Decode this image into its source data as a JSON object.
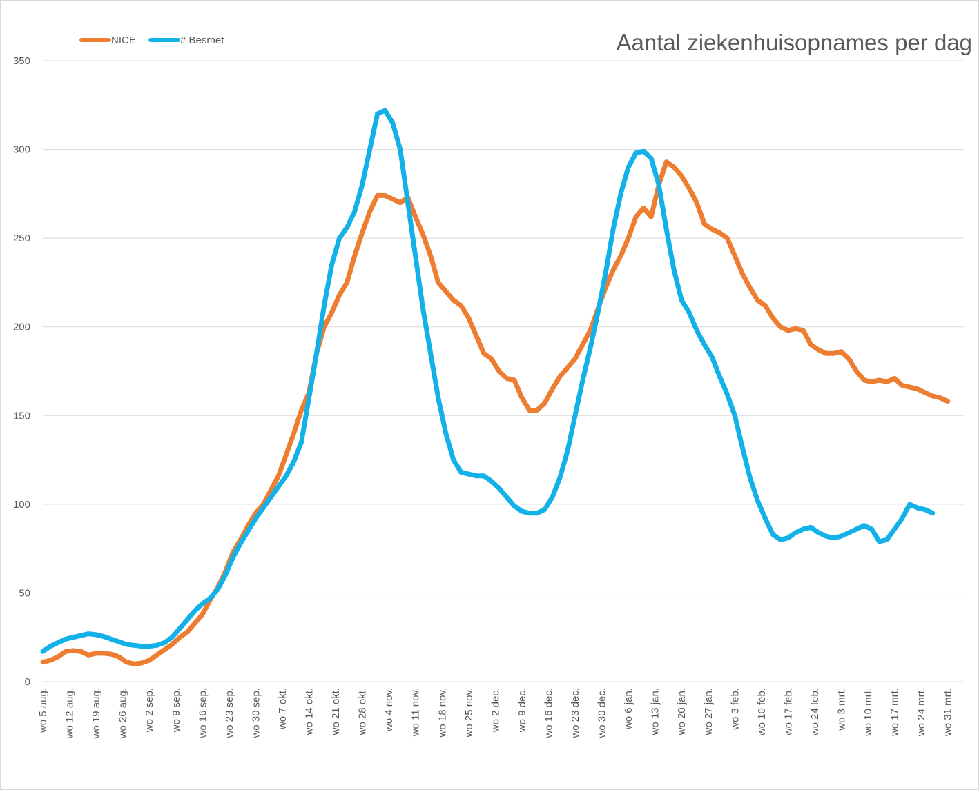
{
  "chart_data": {
    "type": "line",
    "title": "Aantal ziekenhuisopnames per dag",
    "xlabel": "",
    "ylabel": "",
    "ylim": [
      0,
      350
    ],
    "yticks": [
      0,
      50,
      100,
      150,
      200,
      250,
      300,
      350
    ],
    "grid": true,
    "legend_position": "top-left",
    "categories": [
      "wo 5 aug.",
      "wo 12 aug.",
      "wo 19 aug.",
      "wo 26 aug.",
      "wo 2 sep.",
      "wo 9 sep.",
      "wo 16 sep.",
      "wo 23 sep.",
      "wo 30 sep.",
      "wo 7 okt.",
      "wo 14 okt.",
      "wo 21 okt.",
      "wo 28 okt.",
      "wo 4 nov.",
      "wo 11 nov.",
      "wo 18 nov.",
      "wo 25 nov.",
      "wo 2 dec.",
      "wo 9 dec.",
      "wo 16 dec.",
      "wo 23 dec.",
      "wo 30 dec.",
      "wo 6 jan.",
      "wo 13 jan.",
      "wo 20 jan.",
      "wo 27 jan.",
      "wo 3 feb.",
      "wo 10 feb.",
      "wo 17 feb.",
      "wo 24 feb.",
      "wo 3 mrt.",
      "wo 10 mrt.",
      "wo 17 mrt.",
      "wo 24 mrt.",
      "wo 31 mrt."
    ],
    "series": [
      {
        "name": "NICE",
        "color": "#ed7d31",
        "points": [
          [
            0,
            11
          ],
          [
            2,
            12
          ],
          [
            4,
            14
          ],
          [
            6,
            17
          ],
          [
            8,
            17.5
          ],
          [
            10,
            17
          ],
          [
            12,
            15
          ],
          [
            14,
            16
          ],
          [
            16,
            16
          ],
          [
            18,
            15.5
          ],
          [
            20,
            14
          ],
          [
            22,
            11
          ],
          [
            24,
            10
          ],
          [
            26,
            10.5
          ],
          [
            28,
            12
          ],
          [
            30,
            15
          ],
          [
            32,
            18
          ],
          [
            34,
            21
          ],
          [
            36,
            25
          ],
          [
            38,
            28
          ],
          [
            40,
            33
          ],
          [
            42,
            38
          ],
          [
            44,
            46
          ],
          [
            46,
            53
          ],
          [
            48,
            62
          ],
          [
            50,
            73
          ],
          [
            52,
            80
          ],
          [
            54,
            88
          ],
          [
            56,
            95
          ],
          [
            58,
            100
          ],
          [
            60,
            108
          ],
          [
            62,
            116
          ],
          [
            64,
            128
          ],
          [
            66,
            140
          ],
          [
            68,
            153
          ],
          [
            70,
            163
          ],
          [
            72,
            185
          ],
          [
            74,
            200
          ],
          [
            76,
            208
          ],
          [
            78,
            218
          ],
          [
            80,
            225
          ],
          [
            82,
            240
          ],
          [
            84,
            253
          ],
          [
            86,
            265
          ],
          [
            88,
            274
          ],
          [
            90,
            274
          ],
          [
            92,
            272
          ],
          [
            94,
            270
          ],
          [
            96,
            273
          ],
          [
            98,
            262
          ],
          [
            100,
            252
          ],
          [
            102,
            240
          ],
          [
            104,
            225
          ],
          [
            106,
            220
          ],
          [
            108,
            215
          ],
          [
            110,
            212
          ],
          [
            112,
            205
          ],
          [
            114,
            195
          ],
          [
            116,
            185
          ],
          [
            118,
            182
          ],
          [
            120,
            175
          ],
          [
            122,
            171
          ],
          [
            124,
            170
          ],
          [
            126,
            160
          ],
          [
            128,
            153
          ],
          [
            130,
            153
          ],
          [
            132,
            157
          ],
          [
            134,
            165
          ],
          [
            136,
            172
          ],
          [
            138,
            177
          ],
          [
            140,
            182
          ],
          [
            142,
            190
          ],
          [
            144,
            198
          ],
          [
            146,
            210
          ],
          [
            148,
            222
          ],
          [
            150,
            232
          ],
          [
            152,
            240
          ],
          [
            154,
            250
          ],
          [
            156,
            262
          ],
          [
            158,
            267
          ],
          [
            160,
            262
          ],
          [
            162,
            280
          ],
          [
            164,
            293
          ],
          [
            166,
            290
          ],
          [
            168,
            285
          ],
          [
            170,
            278
          ],
          [
            172,
            270
          ],
          [
            174,
            258
          ],
          [
            176,
            255
          ],
          [
            178,
            253
          ],
          [
            180,
            250
          ],
          [
            182,
            240
          ],
          [
            184,
            230
          ],
          [
            186,
            222
          ],
          [
            188,
            215
          ],
          [
            190,
            212
          ],
          [
            192,
            205
          ],
          [
            194,
            200
          ],
          [
            196,
            198
          ],
          [
            198,
            199
          ],
          [
            200,
            198
          ],
          [
            202,
            190
          ],
          [
            204,
            187
          ],
          [
            206,
            185
          ],
          [
            208,
            185
          ],
          [
            210,
            186
          ],
          [
            212,
            182
          ],
          [
            214,
            175
          ],
          [
            216,
            170
          ],
          [
            218,
            169
          ],
          [
            220,
            170
          ],
          [
            222,
            169
          ],
          [
            224,
            171
          ],
          [
            226,
            167
          ],
          [
            228,
            166
          ],
          [
            230,
            165
          ],
          [
            232,
            163
          ],
          [
            234,
            161
          ],
          [
            236,
            160
          ],
          [
            238,
            158
          ]
        ]
      },
      {
        "name": "# Besmet",
        "color": "#12b1e8",
        "points": [
          [
            0,
            17
          ],
          [
            2,
            20
          ],
          [
            4,
            22
          ],
          [
            6,
            24
          ],
          [
            8,
            25
          ],
          [
            10,
            26
          ],
          [
            12,
            27
          ],
          [
            14,
            26.5
          ],
          [
            16,
            25.5
          ],
          [
            18,
            24
          ],
          [
            20,
            22.5
          ],
          [
            22,
            21
          ],
          [
            24,
            20.5
          ],
          [
            26,
            20
          ],
          [
            28,
            20
          ],
          [
            30,
            20.5
          ],
          [
            32,
            22
          ],
          [
            34,
            25
          ],
          [
            36,
            30
          ],
          [
            38,
            35
          ],
          [
            40,
            40
          ],
          [
            42,
            44
          ],
          [
            44,
            47
          ],
          [
            46,
            52
          ],
          [
            48,
            60
          ],
          [
            50,
            70
          ],
          [
            52,
            78
          ],
          [
            54,
            85
          ],
          [
            56,
            92
          ],
          [
            58,
            98
          ],
          [
            60,
            104
          ],
          [
            62,
            110
          ],
          [
            64,
            116
          ],
          [
            66,
            124
          ],
          [
            68,
            135
          ],
          [
            70,
            160
          ],
          [
            72,
            185
          ],
          [
            74,
            212
          ],
          [
            76,
            235
          ],
          [
            78,
            250
          ],
          [
            80,
            256
          ],
          [
            82,
            265
          ],
          [
            84,
            280
          ],
          [
            86,
            300
          ],
          [
            88,
            320
          ],
          [
            90,
            322
          ],
          [
            92,
            315
          ],
          [
            94,
            300
          ],
          [
            96,
            270
          ],
          [
            98,
            240
          ],
          [
            100,
            210
          ],
          [
            102,
            185
          ],
          [
            104,
            160
          ],
          [
            106,
            140
          ],
          [
            108,
            125
          ],
          [
            110,
            118
          ],
          [
            112,
            117
          ],
          [
            114,
            116
          ],
          [
            116,
            116
          ],
          [
            118,
            113
          ],
          [
            120,
            109
          ],
          [
            122,
            104
          ],
          [
            124,
            99
          ],
          [
            126,
            96
          ],
          [
            128,
            95
          ],
          [
            130,
            95
          ],
          [
            132,
            97
          ],
          [
            134,
            104
          ],
          [
            136,
            115
          ],
          [
            138,
            130
          ],
          [
            140,
            150
          ],
          [
            142,
            170
          ],
          [
            144,
            188
          ],
          [
            146,
            208
          ],
          [
            148,
            230
          ],
          [
            150,
            255
          ],
          [
            152,
            275
          ],
          [
            154,
            290
          ],
          [
            156,
            298
          ],
          [
            158,
            299
          ],
          [
            160,
            295
          ],
          [
            162,
            280
          ],
          [
            164,
            255
          ],
          [
            166,
            232
          ],
          [
            168,
            215
          ],
          [
            170,
            208
          ],
          [
            172,
            198
          ],
          [
            174,
            190
          ],
          [
            176,
            183
          ],
          [
            178,
            172
          ],
          [
            180,
            162
          ],
          [
            182,
            150
          ],
          [
            184,
            132
          ],
          [
            186,
            115
          ],
          [
            188,
            102
          ],
          [
            190,
            92
          ],
          [
            192,
            83
          ],
          [
            194,
            80
          ],
          [
            196,
            81
          ],
          [
            198,
            84
          ],
          [
            200,
            86
          ],
          [
            202,
            87
          ],
          [
            204,
            84
          ],
          [
            206,
            82
          ],
          [
            208,
            81
          ],
          [
            210,
            82
          ],
          [
            212,
            84
          ],
          [
            214,
            86
          ],
          [
            216,
            88
          ],
          [
            218,
            86
          ],
          [
            220,
            79
          ],
          [
            222,
            80
          ],
          [
            224,
            86
          ],
          [
            226,
            92
          ],
          [
            228,
            100
          ],
          [
            230,
            98
          ],
          [
            232,
            97
          ],
          [
            234,
            95
          ]
        ]
      }
    ]
  }
}
